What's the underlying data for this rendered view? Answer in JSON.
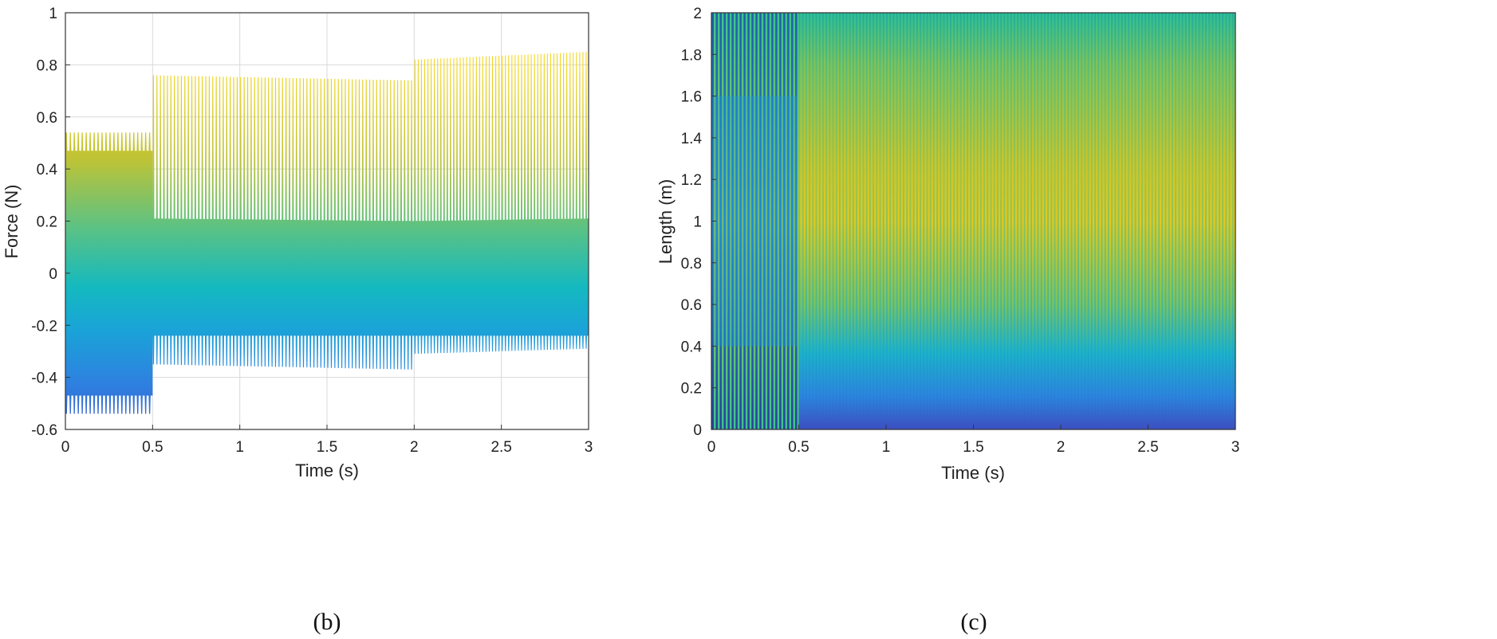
{
  "colors": {
    "colormap": [
      "#3e2a8c",
      "#3b4fc4",
      "#2f7fe0",
      "#1aa3d8",
      "#14b9c0",
      "#3cc38e",
      "#8ac44e",
      "#d8c027",
      "#f4d61a"
    ],
    "grid": "#d9d9d9",
    "axis": "#333333"
  },
  "chart_data": [
    {
      "type": "line",
      "caption": "(b)",
      "xlabel": "Time (s)",
      "ylabel": "Force (N)",
      "xlim": [
        0,
        3
      ],
      "ylim": [
        -0.6,
        1
      ],
      "xticks": [
        0,
        0.5,
        1,
        1.5,
        2,
        2.5,
        3
      ],
      "xtick_labels": [
        "0",
        "0.5",
        "1",
        "1.5",
        "2",
        "2.5",
        "3"
      ],
      "yticks": [
        -0.6,
        -0.4,
        -0.2,
        0,
        0.2,
        0.4,
        0.6,
        0.8,
        1
      ],
      "ytick_labels": [
        "-0.6",
        "-0.4",
        "-0.2",
        "0",
        "0.2",
        "0.4",
        "0.6",
        "0.8",
        "1"
      ],
      "grid": true,
      "segments": [
        {
          "t_start": 0,
          "t_end": 0.5,
          "cycles": 22,
          "upper_peak": [
            0.54,
            0.54
          ],
          "upper_trough": [
            0.47,
            0.47
          ],
          "lower_peak": [
            -0.54,
            -0.54
          ],
          "lower_trough": [
            -0.47,
            -0.47
          ]
        },
        {
          "t_start": 0.5,
          "t_end": 2,
          "cycles": 75,
          "upper_peak": [
            0.76,
            0.74
          ],
          "upper_trough": [
            0.21,
            0.2
          ],
          "lower_peak": [
            -0.35,
            -0.37
          ],
          "lower_trough": [
            -0.24,
            -0.24
          ]
        },
        {
          "t_start": 2,
          "t_end": 3,
          "cycles": 54,
          "upper_peak": [
            0.82,
            0.85
          ],
          "upper_trough": [
            0.2,
            0.21
          ],
          "lower_peak": [
            -0.31,
            -0.29
          ],
          "lower_trough": [
            -0.24,
            -0.24
          ]
        }
      ]
    },
    {
      "type": "heatmap",
      "caption": "(c)",
      "xlabel": "Time (s)",
      "ylabel": "Length (m)",
      "xlim": [
        0,
        3
      ],
      "ylim": [
        0,
        2
      ],
      "xticks": [
        0,
        0.5,
        1,
        1.5,
        2,
        2.5,
        3
      ],
      "xtick_labels": [
        "0",
        "0.5",
        "1",
        "1.5",
        "2",
        "2.5",
        "3"
      ],
      "yticks": [
        0,
        0.2,
        0.4,
        0.6,
        0.8,
        1,
        1.2,
        1.4,
        1.6,
        1.8,
        2
      ],
      "ytick_labels": [
        "0",
        "0.2",
        "0.4",
        "0.6",
        "0.8",
        "1",
        "1.2",
        "1.4",
        "1.6",
        "1.8",
        "2"
      ],
      "grid": false,
      "segments": [
        {
          "t_start": 0,
          "t_end": 0.5,
          "stripes": 22
        },
        {
          "t_start": 0.5,
          "t_end": 3,
          "stripes": 130
        }
      ]
    }
  ]
}
